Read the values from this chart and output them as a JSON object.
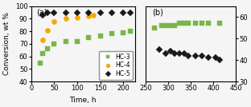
{
  "panel_a": {
    "HC3": {
      "x": [
        20,
        25,
        35,
        50,
        75,
        100,
        125,
        150,
        175,
        200,
        215
      ],
      "y": [
        55,
        62,
        66,
        70,
        72,
        72,
        75,
        76,
        78,
        79,
        80
      ],
      "color": "#7ab648",
      "marker": "s"
    },
    "HC4": {
      "x": [
        25,
        35,
        50,
        75,
        100,
        125,
        135
      ],
      "y": [
        73,
        81,
        88,
        90,
        91,
        92,
        93
      ],
      "color": "#f5a800",
      "marker": "o"
    },
    "HC5": {
      "x": [
        25,
        35,
        50,
        75,
        100,
        125,
        150,
        175,
        200,
        215
      ],
      "y": [
        93,
        95,
        95,
        95,
        95,
        95,
        95,
        95,
        95,
        95
      ],
      "color": "#1a1a1a",
      "marker": "D"
    },
    "xlabel": "Time, h",
    "ylabel": "Conversion, wt %",
    "xlim": [
      0,
      225
    ],
    "ylim": [
      40,
      100
    ],
    "xticks": [
      0,
      50,
      100,
      150,
      200
    ],
    "yticks": [
      40,
      50,
      60,
      70,
      80,
      90,
      100
    ],
    "label": "(a)"
  },
  "panel_b": {
    "HC3": {
      "x": [
        270,
        285,
        295,
        305,
        315,
        325,
        335,
        345,
        360,
        375,
        390,
        415
      ],
      "y": [
        55,
        56,
        56,
        56,
        56,
        57,
        57,
        57,
        57,
        57,
        57,
        57
      ],
      "color": "#7ab648",
      "marker": "s"
    },
    "HC5": {
      "x": [
        280,
        295,
        305,
        315,
        325,
        335,
        345,
        360,
        375,
        390,
        405,
        415
      ],
      "y": [
        45,
        43,
        44,
        43,
        43,
        43,
        42,
        42,
        42,
        41,
        41,
        40
      ],
      "color": "#1a1a1a",
      "marker": "D"
    },
    "xlim": [
      250,
      450
    ],
    "ylim": [
      30,
      65
    ],
    "xticks": [
      250,
      300,
      350,
      400,
      450
    ],
    "yticks": [
      30,
      40,
      50,
      60
    ],
    "label": "(b)"
  },
  "legend": {
    "HC3": "HC-3",
    "HC4": "HC-4",
    "HC5": "HC-5"
  },
  "markersize": 4.5,
  "background": "#f5f5f5"
}
